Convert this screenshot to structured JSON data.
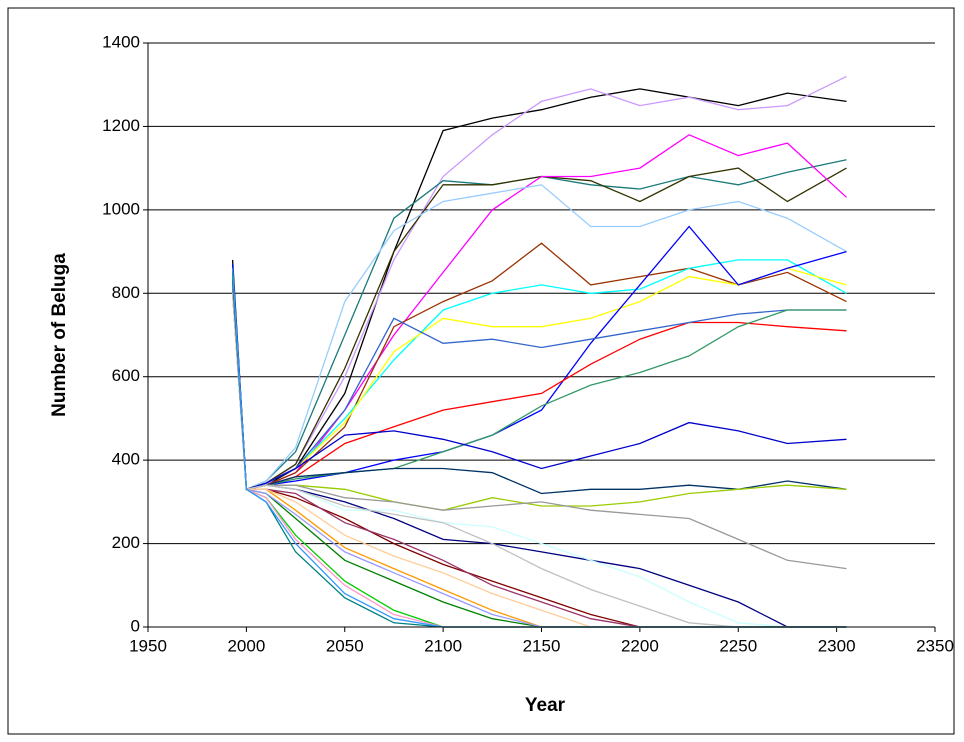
{
  "chart_data": {
    "type": "line",
    "x_label": "Year",
    "y_label": "Number of Beluga",
    "xlim": [
      1950,
      2350
    ],
    "xticks": [
      1950,
      2000,
      2050,
      2100,
      2150,
      2200,
      2250,
      2300,
      2350
    ],
    "ylim": [
      0,
      1400
    ],
    "yticks": [
      0,
      200,
      400,
      600,
      800,
      1000,
      1200,
      1400
    ],
    "grid": true,
    "x": [
      1993,
      2000,
      2010,
      2025,
      2050,
      2075,
      2100,
      2125,
      2150,
      2175,
      2200,
      2225,
      2250,
      2275,
      2305
    ],
    "series": [
      {
        "color": "#000000",
        "values": [
          880,
          330,
          340,
          380,
          560,
          900,
          1190,
          1220,
          1240,
          1270,
          1290,
          1270,
          1250,
          1280,
          1260
        ]
      },
      {
        "color": "#cc99ff",
        "values": [
          820,
          330,
          340,
          390,
          600,
          880,
          1080,
          1180,
          1260,
          1290,
          1250,
          1270,
          1240,
          1250,
          1320
        ]
      },
      {
        "color": "#1a7a7a",
        "values": [
          850,
          330,
          350,
          420,
          700,
          980,
          1070,
          1060,
          1080,
          1060,
          1050,
          1080,
          1060,
          1090,
          1120
        ]
      },
      {
        "color": "#333300",
        "values": [
          800,
          330,
          345,
          390,
          620,
          900,
          1060,
          1060,
          1080,
          1070,
          1020,
          1080,
          1100,
          1020,
          1100
        ]
      },
      {
        "color": "#ff00ff",
        "values": [
          860,
          330,
          340,
          370,
          520,
          700,
          850,
          1000,
          1080,
          1080,
          1100,
          1180,
          1130,
          1160,
          1030
        ]
      },
      {
        "color": "#99ccff",
        "values": [
          840,
          330,
          350,
          430,
          780,
          950,
          1020,
          1040,
          1060,
          960,
          960,
          1000,
          1020,
          980,
          900
        ]
      },
      {
        "color": "#993300",
        "values": [
          820,
          330,
          340,
          370,
          480,
          720,
          780,
          830,
          920,
          820,
          840,
          860,
          820,
          850,
          780
        ]
      },
      {
        "color": "#00ffff",
        "values": [
          830,
          330,
          345,
          380,
          500,
          640,
          760,
          800,
          820,
          800,
          810,
          860,
          880,
          880,
          800
        ]
      },
      {
        "color": "#ffff00",
        "values": [
          810,
          330,
          345,
          380,
          490,
          660,
          740,
          720,
          720,
          740,
          780,
          840,
          820,
          860,
          820
        ]
      },
      {
        "color": "#0000ff",
        "values": [
          870,
          330,
          340,
          350,
          370,
          400,
          420,
          460,
          520,
          680,
          820,
          960,
          820,
          860,
          900
        ]
      },
      {
        "color": "#ff0000",
        "values": [
          850,
          330,
          340,
          360,
          440,
          480,
          520,
          540,
          560,
          630,
          690,
          730,
          730,
          720,
          710
        ]
      },
      {
        "color": "#3366cc",
        "values": [
          800,
          330,
          345,
          380,
          520,
          740,
          680,
          690,
          670,
          690,
          710,
          730,
          750,
          760,
          760
        ]
      },
      {
        "color": "#339966",
        "values": [
          820,
          330,
          340,
          355,
          370,
          380,
          420,
          460,
          530,
          580,
          610,
          650,
          720,
          760,
          760
        ]
      },
      {
        "color": "#0000cc",
        "values": [
          840,
          330,
          345,
          380,
          460,
          470,
          450,
          420,
          380,
          410,
          440,
          490,
          470,
          440,
          450
        ]
      },
      {
        "color": "#003366",
        "values": [
          850,
          330,
          340,
          360,
          370,
          380,
          380,
          370,
          320,
          330,
          330,
          340,
          330,
          350,
          330
        ]
      },
      {
        "color": "#99cc00",
        "values": [
          800,
          330,
          340,
          340,
          330,
          300,
          280,
          310,
          290,
          290,
          300,
          320,
          330,
          340,
          330
        ]
      },
      {
        "color": "#999999",
        "values": [
          830,
          330,
          340,
          340,
          310,
          300,
          280,
          290,
          300,
          280,
          270,
          260,
          210,
          160,
          140
        ]
      },
      {
        "color": "#000080",
        "values": [
          860,
          330,
          340,
          330,
          300,
          260,
          210,
          200,
          180,
          160,
          140,
          100,
          60,
          0,
          0
        ]
      },
      {
        "color": "#ccffff",
        "values": [
          820,
          330,
          340,
          330,
          280,
          280,
          250,
          240,
          200,
          160,
          120,
          60,
          10,
          0,
          0
        ]
      },
      {
        "color": "#800000",
        "values": [
          840,
          330,
          330,
          310,
          260,
          200,
          150,
          110,
          70,
          30,
          0,
          0,
          0,
          0,
          0
        ]
      },
      {
        "color": "#993366",
        "values": [
          810,
          330,
          330,
          320,
          250,
          210,
          160,
          100,
          60,
          20,
          0,
          0,
          0,
          0,
          0
        ]
      },
      {
        "color": "#c0c0c0",
        "values": [
          800,
          330,
          340,
          330,
          290,
          270,
          250,
          200,
          140,
          90,
          50,
          10,
          0,
          0,
          0
        ]
      },
      {
        "color": "#ff9900",
        "values": [
          830,
          330,
          330,
          280,
          190,
          140,
          90,
          40,
          0,
          0,
          0,
          0,
          0,
          0,
          0
        ]
      },
      {
        "color": "#008000",
        "values": [
          850,
          330,
          320,
          260,
          160,
          110,
          60,
          20,
          0,
          0,
          0,
          0,
          0,
          0,
          0
        ]
      },
      {
        "color": "#ffcc99",
        "values": [
          800,
          330,
          330,
          300,
          220,
          170,
          130,
          80,
          40,
          0,
          0,
          0,
          0,
          0,
          0
        ]
      },
      {
        "color": "#9999ff",
        "values": [
          820,
          330,
          320,
          270,
          180,
          130,
          80,
          30,
          0,
          0,
          0,
          0,
          0,
          0,
          0
        ]
      },
      {
        "color": "#00cc00",
        "values": [
          840,
          330,
          310,
          220,
          110,
          40,
          0,
          0,
          0,
          0,
          0,
          0,
          0,
          0,
          0
        ]
      },
      {
        "color": "#ff99cc",
        "values": [
          820,
          330,
          310,
          210,
          100,
          30,
          0,
          0,
          0,
          0,
          0,
          0,
          0,
          0,
          0
        ]
      },
      {
        "color": "#008080",
        "values": [
          830,
          330,
          300,
          180,
          70,
          10,
          0,
          0,
          0,
          0,
          0,
          0,
          0,
          0,
          0
        ]
      },
      {
        "color": "#3399ff",
        "values": [
          860,
          330,
          300,
          200,
          80,
          20,
          0,
          0,
          0,
          0,
          0,
          0,
          0,
          0,
          0
        ]
      }
    ]
  }
}
